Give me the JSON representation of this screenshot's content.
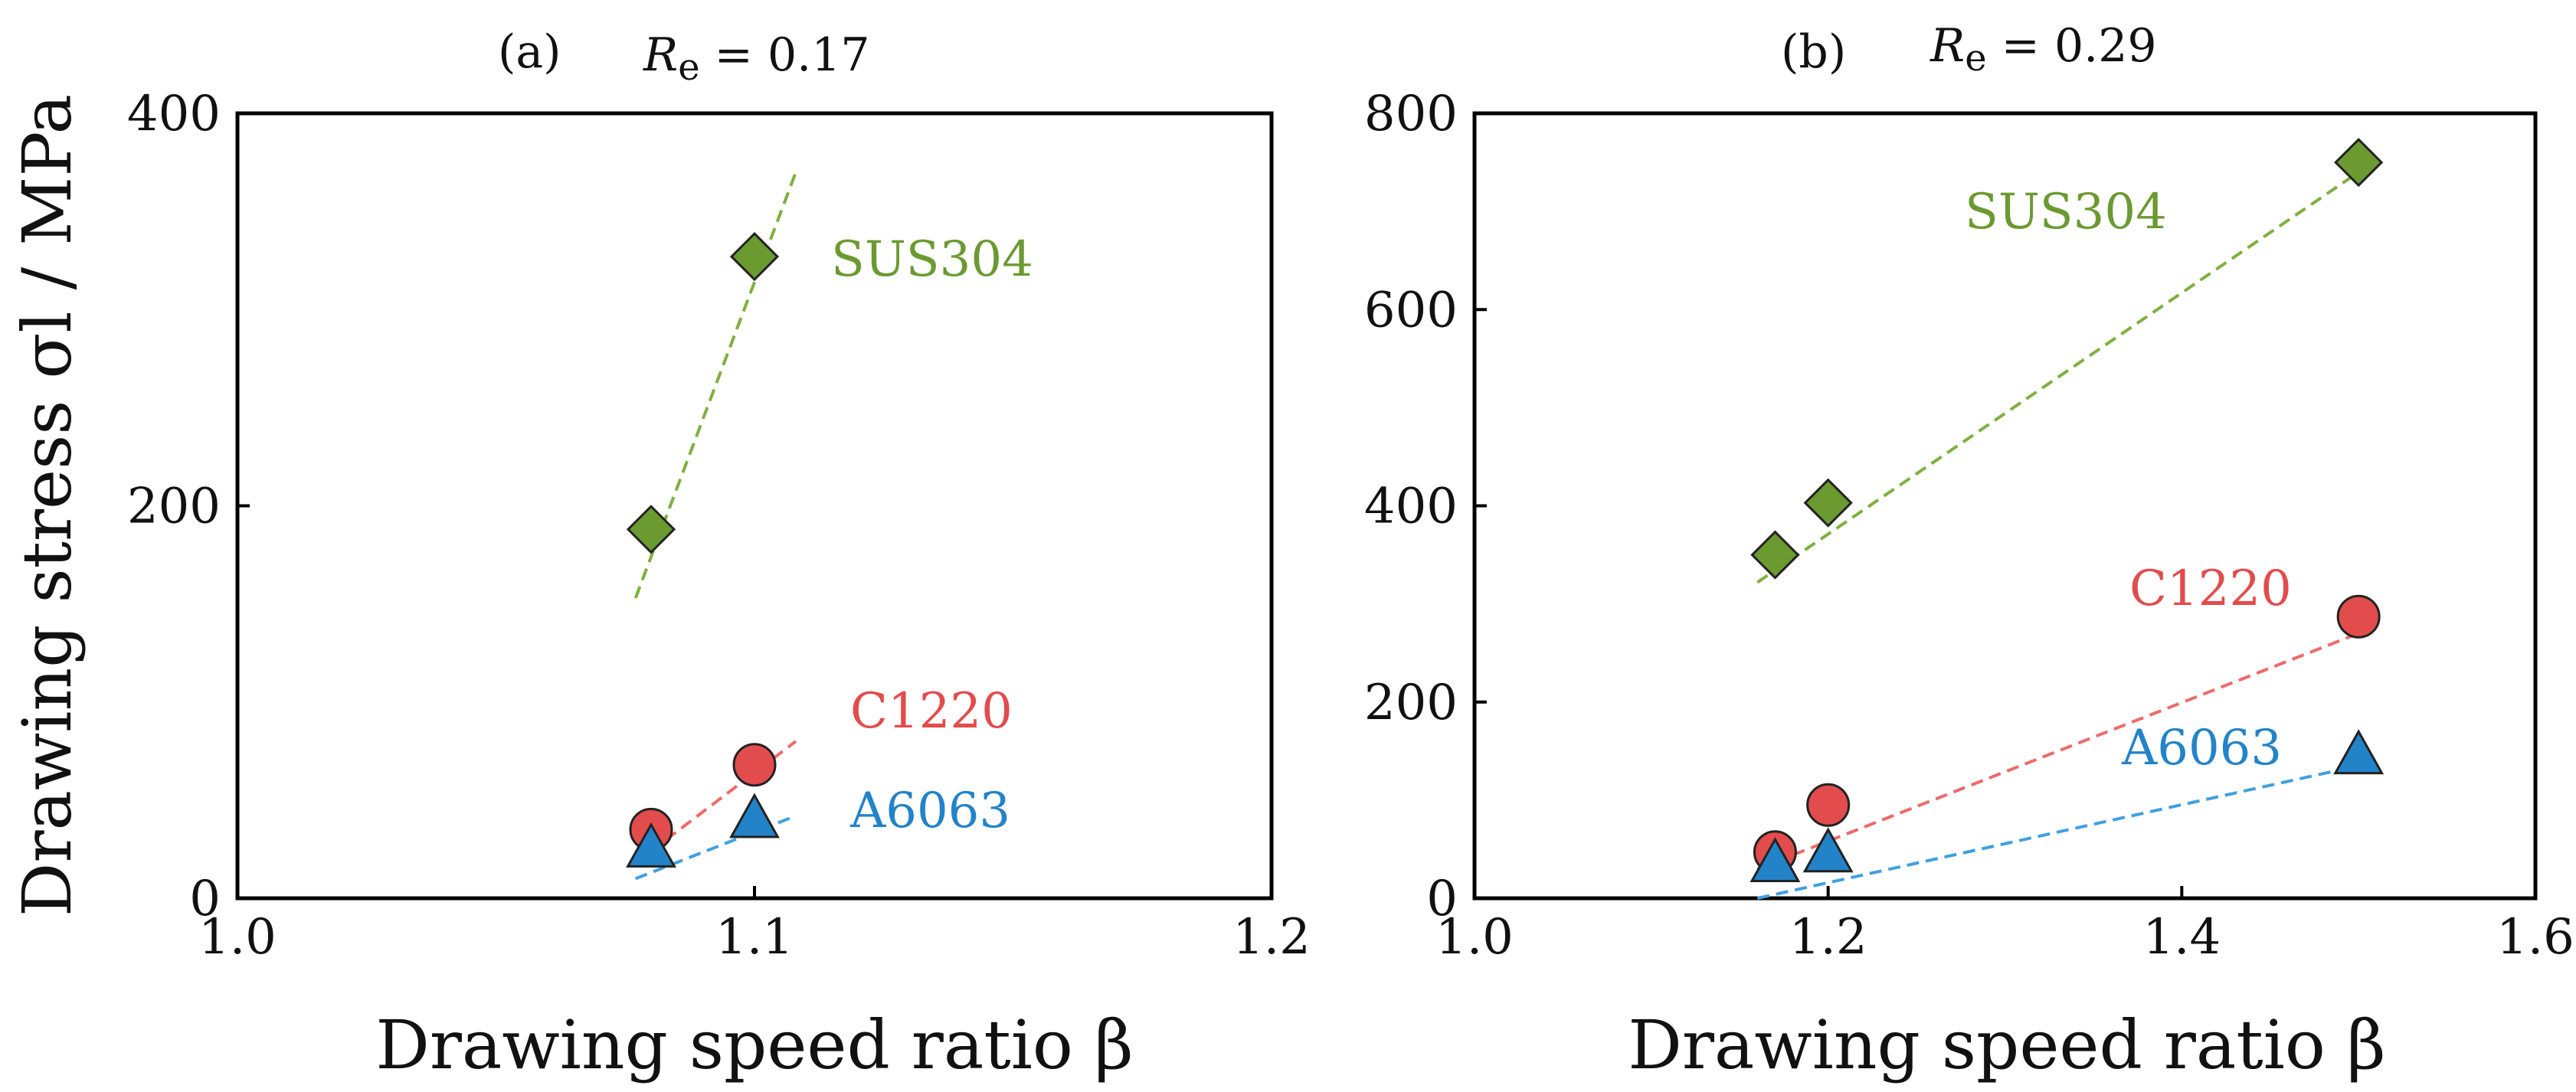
{
  "chart_data": [
    {
      "type": "scatter",
      "panel": "(a)",
      "title_prefix": "R",
      "title_sub": "e",
      "title_suffix": " = 0.17",
      "xlabel": "Drawing speed ratio β",
      "ylabel": "Drawing stress σl / MPa",
      "xlim": [
        1.0,
        1.2
      ],
      "ylim": [
        0,
        400
      ],
      "xticks": [
        1.0,
        1.1,
        1.2
      ],
      "xtick_labels": [
        "1.0",
        "1.1",
        "1.2"
      ],
      "yticks": [
        0,
        200,
        400
      ],
      "ytick_labels": [
        "0",
        "200",
        "400"
      ],
      "series": [
        {
          "name": "SUS304",
          "marker": "diamond",
          "color": "#6b9a31",
          "line_color": "#7fb03f",
          "x": [
            1.08,
            1.1
          ],
          "y": [
            188,
            327
          ],
          "fit": [
            [
              1.077,
              153
            ],
            [
              1.108,
              370
            ]
          ]
        },
        {
          "name": "C1220",
          "marker": "circle",
          "color": "#e24c4c",
          "line_color": "#ee6a6a",
          "x": [
            1.08,
            1.1
          ],
          "y": [
            35,
            68
          ],
          "fit": [
            [
              1.077,
              18
            ],
            [
              1.108,
              80
            ]
          ]
        },
        {
          "name": "A6063",
          "marker": "triangle",
          "color": "#2383c9",
          "line_color": "#3fa0e0",
          "x": [
            1.08,
            1.1
          ],
          "y": [
            25,
            40
          ],
          "fit": [
            [
              1.077,
              10
            ],
            [
              1.108,
              42
            ]
          ]
        }
      ]
    },
    {
      "type": "scatter",
      "panel": "(b)",
      "title_prefix": "R",
      "title_sub": "e",
      "title_suffix": " = 0.29",
      "xlabel": "Drawing speed ratio β",
      "ylabel": "",
      "xlim": [
        1.0,
        1.6
      ],
      "ylim": [
        0,
        800
      ],
      "xticks": [
        1.0,
        1.2,
        1.4,
        1.6
      ],
      "xtick_labels": [
        "1.0",
        "1.2",
        "1.4",
        "1.6"
      ],
      "yticks": [
        0,
        200,
        400,
        600,
        800
      ],
      "ytick_labels": [
        "0",
        "200",
        "400",
        "600",
        "800"
      ],
      "series": [
        {
          "name": "SUS304",
          "marker": "diamond",
          "color": "#6b9a31",
          "line_color": "#7fb03f",
          "x": [
            1.17,
            1.2,
            1.5
          ],
          "y": [
            350,
            403,
            750
          ],
          "fit": [
            [
              1.16,
              322
            ],
            [
              1.5,
              740
            ]
          ]
        },
        {
          "name": "C1220",
          "marker": "circle",
          "color": "#e24c4c",
          "line_color": "#ee6a6a",
          "x": [
            1.17,
            1.2,
            1.5
          ],
          "y": [
            47,
            95,
            287
          ],
          "fit": [
            [
              1.16,
              30
            ],
            [
              1.5,
              270
            ]
          ]
        },
        {
          "name": "A6063",
          "marker": "triangle",
          "color": "#2383c9",
          "line_color": "#3fa0e0",
          "x": [
            1.17,
            1.2,
            1.5
          ],
          "y": [
            35,
            45,
            145
          ],
          "fit": [
            [
              1.16,
              0
            ],
            [
              1.5,
              135
            ]
          ]
        }
      ]
    }
  ]
}
